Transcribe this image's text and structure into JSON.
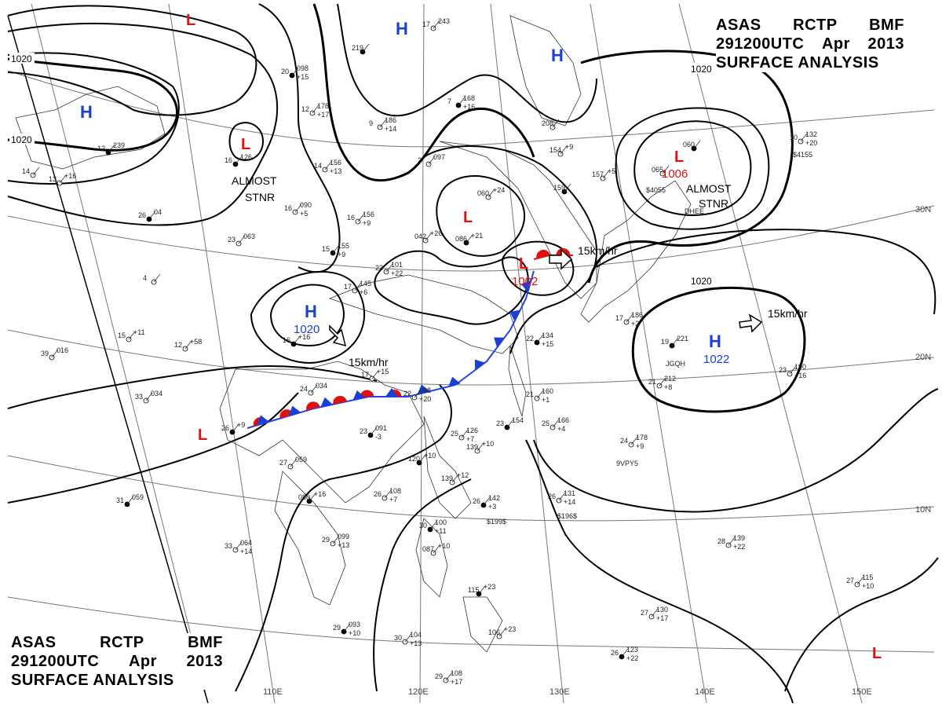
{
  "title": {
    "line1": [
      "ASAS",
      "RCTP",
      "BMF"
    ],
    "line2": [
      "291200UTC",
      "Apr",
      "2013"
    ],
    "line3": "SURFACE ANALYSIS"
  },
  "colors": {
    "high": "#1a3fd6",
    "low": "#e01010",
    "lines": "#000000",
    "coast": "#333333",
    "grid": "#777777"
  },
  "isobar_labels": [
    "1020",
    "1020",
    "1020",
    "1020"
  ],
  "pressure_centers": [
    {
      "symbol": "H",
      "type": "high",
      "value": ""
    },
    {
      "symbol": "H",
      "type": "high",
      "value": ""
    },
    {
      "symbol": "H",
      "type": "high",
      "value": ""
    },
    {
      "symbol": "H",
      "type": "high",
      "value": "1020"
    },
    {
      "symbol": "H",
      "type": "high",
      "value": "1022"
    },
    {
      "symbol": "L",
      "type": "low",
      "value": ""
    },
    {
      "symbol": "L",
      "type": "low",
      "value": ""
    },
    {
      "symbol": "L",
      "type": "low",
      "value": ""
    },
    {
      "symbol": "L",
      "type": "low",
      "value": "1002"
    },
    {
      "symbol": "L",
      "type": "low",
      "value": "1006"
    },
    {
      "symbol": "L",
      "type": "low",
      "value": ""
    },
    {
      "symbol": "L",
      "type": "low",
      "value": ""
    }
  ],
  "annotations": {
    "almost_stnr_1": [
      "ALMOST",
      "STNR"
    ],
    "almost_stnr_2": [
      "ALMOST",
      "STNR"
    ],
    "movement": [
      "15km/hr",
      "15km/hr",
      "15km/hr"
    ]
  },
  "longitude_labels": [
    "110E",
    "120E",
    "130E",
    "140E",
    "150E"
  ],
  "latitude_labels": [
    "30N",
    "20N",
    "10N"
  ],
  "stations": [
    {
      "v": [
        "20",
        "098",
        "+15"
      ]
    },
    {
      "v": [
        "12",
        "178",
        "+17"
      ]
    },
    {
      "v": [
        "14",
        "156",
        "+13"
      ]
    },
    {
      "v": [
        "16",
        "126"
      ]
    },
    {
      "v": [
        "16",
        "090",
        "+5"
      ]
    },
    {
      "v": [
        "16",
        "156",
        "+9"
      ]
    },
    {
      "v": [
        "15",
        "155",
        "+9"
      ]
    },
    {
      "v": [
        "17",
        "145",
        "+6"
      ]
    },
    {
      "v": [
        "23",
        "063"
      ]
    },
    {
      "v": [
        "26",
        "04"
      ]
    },
    {
      "v": [
        "12",
        "+58"
      ]
    },
    {
      "v": [
        "15",
        "+11"
      ]
    },
    {
      "v": [
        "16",
        "+16"
      ]
    },
    {
      "v": [
        "23",
        "101",
        "+22"
      ]
    },
    {
      "v": [
        "042",
        "+26"
      ]
    },
    {
      "v": [
        "086",
        "+21"
      ]
    },
    {
      "v": [
        "060",
        "+24"
      ]
    },
    {
      "v": [
        "9",
        "186",
        "+14"
      ]
    },
    {
      "v": [
        "7",
        "168",
        "+16"
      ]
    },
    {
      "v": [
        "2",
        "097"
      ]
    },
    {
      "v": [
        "17",
        "243"
      ]
    },
    {
      "v": [
        "219"
      ]
    },
    {
      "v": [
        "208"
      ]
    },
    {
      "v": [
        "154",
        "+9"
      ]
    },
    {
      "v": [
        "159"
      ]
    },
    {
      "v": [
        "157",
        "+5"
      ]
    },
    {
      "v": [
        "065"
      ]
    },
    {
      "v": [
        "060"
      ]
    },
    {
      "v": [
        "10",
        "132",
        "+20"
      ]
    },
    {
      "v": [
        "17",
        "186",
        "+2"
      ]
    },
    {
      "v": [
        "19",
        "221"
      ]
    },
    {
      "v": [
        "21",
        "212",
        "+8"
      ]
    },
    {
      "v": [
        "23",
        "190",
        "+16"
      ]
    },
    {
      "v": [
        "22",
        "134",
        "+15"
      ]
    },
    {
      "v": [
        "21",
        "160",
        "+1"
      ]
    },
    {
      "v": [
        "22",
        "098",
        "+20"
      ]
    },
    {
      "v": [
        "23",
        "154"
      ]
    },
    {
      "v": [
        "25",
        "166",
        "+4"
      ]
    },
    {
      "v": [
        "24",
        "178",
        "+9"
      ]
    },
    {
      "v": [
        "23",
        "091",
        "-3"
      ]
    },
    {
      "v": [
        "25",
        "126",
        "+7"
      ]
    },
    {
      "v": [
        "139",
        "+10"
      ]
    },
    {
      "v": [
        "120",
        "+10"
      ]
    },
    {
      "v": [
        "139",
        "+12"
      ]
    },
    {
      "v": [
        "26",
        "108",
        "+7"
      ]
    },
    {
      "v": [
        "26",
        "142",
        "+3"
      ]
    },
    {
      "v": [
        "26",
        "131",
        "+14"
      ]
    },
    {
      "v": [
        "27",
        "059"
      ]
    },
    {
      "v": [
        "080",
        "+16"
      ]
    },
    {
      "v": [
        "29",
        "099",
        "+13"
      ]
    },
    {
      "v": [
        "33",
        "064",
        "+14"
      ]
    },
    {
      "v": [
        "30",
        "100",
        "+11"
      ]
    },
    {
      "v": [
        "087",
        "+10"
      ]
    },
    {
      "v": [
        "28",
        "139",
        "+22"
      ]
    },
    {
      "v": [
        "29",
        "093",
        "+10"
      ]
    },
    {
      "v": [
        "30",
        "104",
        "+13"
      ]
    },
    {
      "v": [
        "29",
        "108",
        "+17"
      ]
    },
    {
      "v": [
        "115",
        "+23"
      ]
    },
    {
      "v": [
        "106",
        "+23"
      ]
    },
    {
      "v": [
        "27",
        "130",
        "+17"
      ]
    },
    {
      "v": [
        "26",
        "123",
        "+22"
      ]
    },
    {
      "v": [
        "27",
        "115",
        "+10"
      ]
    },
    {
      "v": [
        "33",
        "034"
      ]
    },
    {
      "v": [
        "31",
        "059"
      ]
    },
    {
      "v": [
        "39",
        "016"
      ]
    },
    {
      "v": [
        "4"
      ]
    },
    {
      "v": [
        "26",
        "+9"
      ]
    },
    {
      "v": [
        "24",
        "034"
      ]
    },
    {
      "v": [
        "17",
        "+15"
      ]
    },
    {
      "v": [
        "12",
        "239"
      ]
    },
    {
      "v": [
        "13",
        "+16"
      ]
    },
    {
      "v": [
        "14"
      ]
    }
  ],
  "ship_ids": [
    "$4155",
    "$4055",
    "DHEE",
    "JGQH",
    "9VPY5",
    "$199$",
    "$196$"
  ]
}
